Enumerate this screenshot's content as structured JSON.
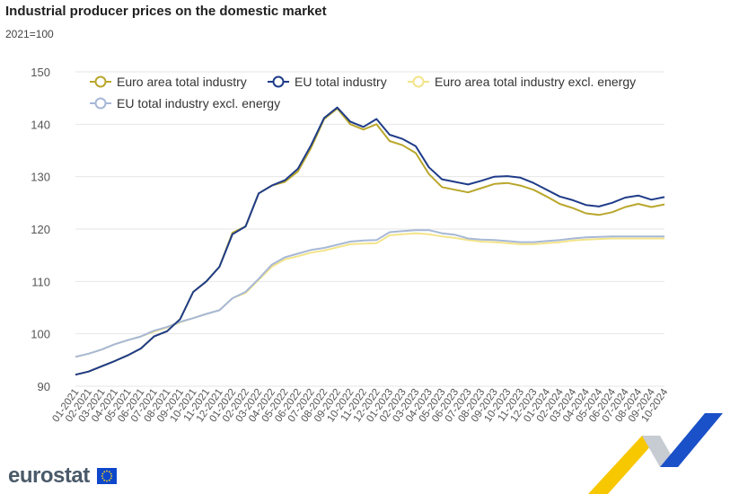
{
  "header": {
    "title": "Industrial producer prices on the domestic market",
    "subtitle": "2021=100"
  },
  "brand": {
    "logo_text": "eurostat"
  },
  "chart_data": {
    "type": "line",
    "ylim": [
      90,
      150
    ],
    "yticks": [
      90,
      100,
      110,
      120,
      130,
      140,
      150
    ],
    "grid": true,
    "legend_position": "top",
    "categories": [
      "01-2021",
      "02-2021",
      "03-2021",
      "04-2021",
      "05-2021",
      "06-2021",
      "07-2021",
      "08-2021",
      "09-2021",
      "10-2021",
      "11-2021",
      "12-2021",
      "01-2022",
      "02-2022",
      "03-2022",
      "04-2022",
      "05-2022",
      "06-2022",
      "07-2022",
      "08-2022",
      "09-2022",
      "10-2022",
      "11-2022",
      "12-2022",
      "01-2023",
      "02-2023",
      "03-2023",
      "04-2023",
      "05-2023",
      "06-2023",
      "07-2023",
      "08-2023",
      "09-2023",
      "10-2023",
      "11-2023",
      "12-2023",
      "01-2024",
      "02-2024",
      "03-2024",
      "04-2024",
      "05-2024",
      "06-2024",
      "07-2024",
      "08-2024",
      "09-2024",
      "10-2024"
    ],
    "series": [
      {
        "name": "Euro area total industry",
        "color": "#b9a72c",
        "values": [
          92.2,
          92.8,
          93.8,
          94.8,
          95.9,
          97.2,
          99.5,
          100.5,
          102.8,
          108.0,
          110.0,
          112.8,
          119.3,
          120.5,
          126.8,
          128.3,
          129.0,
          131.0,
          135.5,
          141.0,
          143.0,
          140.0,
          139.0,
          140.0,
          136.8,
          136.0,
          134.5,
          130.5,
          128.0,
          127.5,
          127.0,
          127.8,
          128.6,
          128.8,
          128.3,
          127.5,
          126.2,
          124.8,
          124.0,
          123.0,
          122.7,
          123.2,
          124.2,
          124.8,
          124.2,
          124.7
        ]
      },
      {
        "name": "EU total industry",
        "color": "#1f3c88",
        "values": [
          92.2,
          92.8,
          93.8,
          94.8,
          95.9,
          97.2,
          99.5,
          100.5,
          102.8,
          108.0,
          110.0,
          112.8,
          119.0,
          120.5,
          126.8,
          128.3,
          129.3,
          131.5,
          136.0,
          141.2,
          143.2,
          140.5,
          139.5,
          141.0,
          138.0,
          137.2,
          135.8,
          131.8,
          129.5,
          129.0,
          128.5,
          129.2,
          130.0,
          130.1,
          129.8,
          128.8,
          127.5,
          126.2,
          125.5,
          124.6,
          124.3,
          125.0,
          126.0,
          126.4,
          125.6,
          126.1
        ]
      },
      {
        "name": "Euro area total industry excl. energy",
        "color": "#f3e48a",
        "values": [
          95.6,
          96.2,
          97.0,
          98.0,
          98.8,
          99.5,
          100.4,
          101.2,
          102.2,
          103.0,
          103.8,
          104.5,
          106.8,
          107.8,
          110.3,
          112.8,
          114.2,
          114.8,
          115.5,
          115.9,
          116.5,
          117.1,
          117.2,
          117.3,
          118.8,
          119.0,
          119.2,
          119.0,
          118.6,
          118.3,
          117.9,
          117.6,
          117.5,
          117.3,
          117.1,
          117.1,
          117.3,
          117.5,
          117.8,
          118.0,
          118.1,
          118.2,
          118.2,
          118.2,
          118.2,
          118.2
        ]
      },
      {
        "name": "EU total industry excl. energy",
        "color": "#a7b8d6",
        "values": [
          95.6,
          96.2,
          97.0,
          98.0,
          98.8,
          99.5,
          100.6,
          101.3,
          102.3,
          103.0,
          103.8,
          104.5,
          106.8,
          108.0,
          110.5,
          113.2,
          114.6,
          115.3,
          116.0,
          116.4,
          117.0,
          117.6,
          117.8,
          117.9,
          119.4,
          119.6,
          119.8,
          119.8,
          119.2,
          118.9,
          118.2,
          118.0,
          117.9,
          117.7,
          117.5,
          117.5,
          117.7,
          117.9,
          118.2,
          118.4,
          118.5,
          118.6,
          118.6,
          118.6,
          118.6,
          118.6
        ]
      }
    ]
  }
}
